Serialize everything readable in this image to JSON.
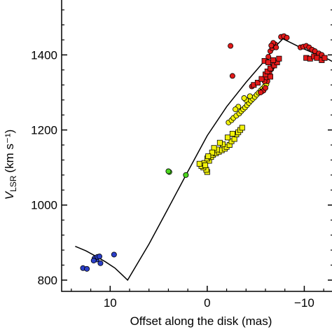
{
  "chart_data": {
    "type": "scatter",
    "title": "",
    "xlabel": "Offset along the disk (mas)",
    "ylabel_main": "V",
    "ylabel_sub": "LSR",
    "ylabel_unit": "(km s⁻¹)",
    "x_reversed": true,
    "xlim": [
      15,
      -13
    ],
    "ylim": [
      770,
      1550
    ],
    "x_ticks": [
      10,
      0,
      -10
    ],
    "x_tick_labels": [
      "10",
      "0",
      "−10"
    ],
    "y_ticks": [
      800,
      1000,
      1200,
      1400
    ],
    "y_tick_labels": [
      "800",
      "1000",
      "1200",
      "1400"
    ],
    "grid": false,
    "model_line": {
      "x": [
        13.6,
        12.5,
        11.5,
        10.5,
        9.5,
        8.8,
        8.2,
        6.0,
        4.0,
        2.0,
        0.0,
        -2.0,
        -4.0,
        -6.0,
        -7.0,
        -7.8,
        -8.5,
        -9.5,
        -10.5,
        -11.5,
        -12.5,
        -13.4
      ],
      "y": [
        890,
        878,
        864,
        849,
        832,
        815,
        800,
        896,
        992,
        1089,
        1185,
        1262,
        1327,
        1387,
        1422,
        1443,
        1434,
        1421,
        1410,
        1399,
        1388,
        1375
      ]
    },
    "series": [
      {
        "color": "#2b3fc9",
        "marker": "circle",
        "points": [
          [
            12.8,
            832
          ],
          [
            12.4,
            830
          ],
          [
            11.0,
            845
          ],
          [
            11.4,
            855
          ],
          [
            11.6,
            858
          ],
          [
            11.3,
            862
          ],
          [
            11.1,
            863
          ],
          [
            11.7,
            852
          ],
          [
            9.6,
            868
          ]
        ]
      },
      {
        "color": "#4bd61e",
        "marker": "circle",
        "points": [
          [
            3.9,
            1088
          ],
          [
            2.2,
            1080
          ],
          [
            4.0,
            1090
          ]
        ]
      },
      {
        "color": "#f2f20a",
        "marker": "square",
        "points": [
          [
            -0.0,
            1088
          ],
          [
            0.1,
            1094
          ],
          [
            0.4,
            1100
          ],
          [
            0.6,
            1104
          ],
          [
            0.8,
            1110
          ],
          [
            0.3,
            1112
          ],
          [
            -0.2,
            1118
          ],
          [
            0.0,
            1124
          ],
          [
            -0.4,
            1128
          ],
          [
            -0.6,
            1134
          ],
          [
            -0.9,
            1138
          ],
          [
            -1.2,
            1142
          ],
          [
            -1.5,
            1146
          ],
          [
            -1.8,
            1150
          ],
          [
            -2.0,
            1155
          ],
          [
            -2.3,
            1160
          ],
          [
            -1.0,
            1148
          ],
          [
            -0.7,
            1152
          ],
          [
            -1.6,
            1162
          ],
          [
            -2.5,
            1170
          ],
          [
            -2.8,
            1176
          ],
          [
            -1.3,
            1166
          ],
          [
            -2.1,
            1180
          ],
          [
            -0.5,
            1140
          ],
          [
            -3.0,
            1188
          ],
          [
            -3.2,
            1194
          ],
          [
            -2.6,
            1190
          ],
          [
            -3.4,
            1200
          ],
          [
            -3.6,
            1206
          ],
          [
            0.2,
            1106
          ],
          [
            -0.1,
            1130
          ]
        ]
      },
      {
        "color": "#f2f20a",
        "marker": "circle",
        "points": [
          [
            -2.2,
            1220
          ],
          [
            -2.5,
            1226
          ],
          [
            -2.7,
            1232
          ],
          [
            -3.0,
            1238
          ],
          [
            -3.3,
            1244
          ],
          [
            -3.5,
            1250
          ],
          [
            -3.7,
            1255
          ],
          [
            -3.9,
            1260
          ],
          [
            -4.1,
            1266
          ],
          [
            -4.3,
            1272
          ],
          [
            -4.5,
            1278
          ],
          [
            -4.7,
            1283
          ],
          [
            -4.9,
            1288
          ],
          [
            -5.1,
            1294
          ],
          [
            -5.3,
            1299
          ],
          [
            -5.5,
            1305
          ],
          [
            -4.0,
            1280
          ],
          [
            -4.4,
            1290
          ],
          [
            -3.2,
            1262
          ],
          [
            -2.9,
            1255
          ],
          [
            -5.7,
            1310
          ],
          [
            -5.9,
            1316
          ],
          [
            -6.1,
            1322
          ],
          [
            -3.8,
            1285
          ]
        ]
      },
      {
        "color": "#e31a1a",
        "marker": "circle",
        "points": [
          [
            -2.4,
            1424
          ],
          [
            -2.6,
            1344
          ],
          [
            -4.6,
            1316
          ],
          [
            -5.6,
            1302
          ],
          [
            -5.8,
            1305
          ],
          [
            -6.0,
            1312
          ],
          [
            -5.5,
            1300
          ],
          [
            -6.2,
            1330
          ],
          [
            -6.6,
            1362
          ],
          [
            -6.8,
            1370
          ],
          [
            -5.9,
            1330
          ],
          [
            -6.3,
            1395
          ],
          [
            -6.5,
            1410
          ],
          [
            -6.7,
            1418
          ],
          [
            -6.9,
            1424
          ],
          [
            -7.0,
            1428
          ],
          [
            -6.8,
            1432
          ],
          [
            -7.1,
            1420
          ],
          [
            -6.6,
            1425
          ],
          [
            -7.6,
            1448
          ],
          [
            -7.9,
            1450
          ],
          [
            -8.2,
            1446
          ],
          [
            -9.6,
            1420
          ],
          [
            -9.9,
            1422
          ],
          [
            -10.2,
            1424
          ],
          [
            -10.5,
            1420
          ],
          [
            -10.8,
            1414
          ],
          [
            -11.1,
            1410
          ],
          [
            -11.5,
            1404
          ],
          [
            -11.8,
            1400
          ],
          [
            -6.4,
            1352
          ],
          [
            -6.1,
            1340
          ]
        ]
      },
      {
        "color": "#e31a1a",
        "marker": "square",
        "points": [
          [
            -4.8,
            1320
          ],
          [
            -5.2,
            1326
          ],
          [
            -5.6,
            1336
          ],
          [
            -6.0,
            1348
          ],
          [
            -6.2,
            1356
          ],
          [
            -6.5,
            1364
          ],
          [
            -6.9,
            1372
          ],
          [
            -7.2,
            1380
          ],
          [
            -5.9,
            1384
          ],
          [
            -6.3,
            1380
          ],
          [
            -6.8,
            1386
          ],
          [
            -6.5,
            1342
          ],
          [
            -10.2,
            1392
          ],
          [
            -10.6,
            1390
          ],
          [
            -11.0,
            1396
          ],
          [
            -11.3,
            1392
          ],
          [
            -11.8,
            1386
          ],
          [
            -12.1,
            1392
          ],
          [
            -7.4,
            1390
          ]
        ]
      }
    ]
  }
}
